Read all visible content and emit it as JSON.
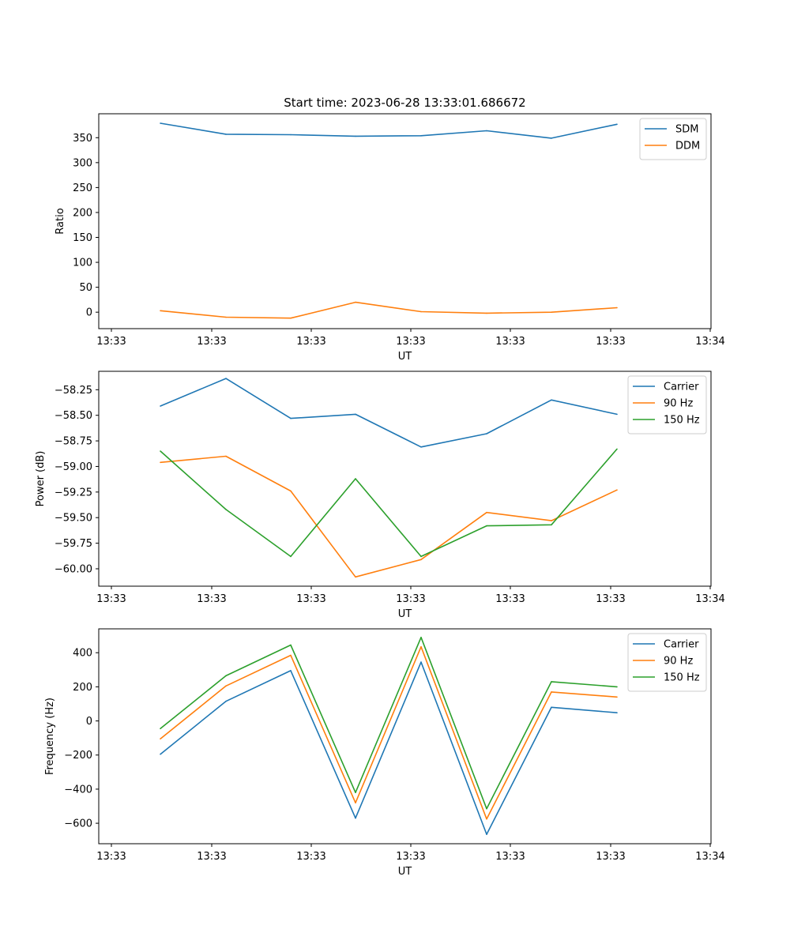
{
  "chart_data": [
    {
      "type": "line",
      "title": "Start time: 2023-06-28 13:33:01.686672",
      "xlabel": "UT",
      "ylabel": "Ratio",
      "x_tick_labels": [
        "13:33",
        "13:33",
        "13:33",
        "13:33",
        "13:33",
        "13:33",
        "13:34"
      ],
      "y_ticks": [
        0,
        50,
        100,
        150,
        200,
        250,
        300,
        350
      ],
      "y_tick_labels": [
        "0",
        "50",
        "100",
        "150",
        "200",
        "250",
        "300",
        "350"
      ],
      "ylim": [
        -33,
        398
      ],
      "grid": false,
      "legend_position": "top-right",
      "series": [
        {
          "name": "SDM",
          "color": "#1f77b4",
          "values": [
            379,
            357,
            356,
            353,
            354,
            364,
            349,
            377
          ]
        },
        {
          "name": "DDM",
          "color": "#ff7f0e",
          "values": [
            3,
            -10,
            -12,
            20,
            1,
            -2,
            0,
            9
          ]
        }
      ]
    },
    {
      "type": "line",
      "title": "",
      "xlabel": "UT",
      "ylabel": "Power (dB)",
      "x_tick_labels": [
        "13:33",
        "13:33",
        "13:33",
        "13:33",
        "13:33",
        "13:33",
        "13:34"
      ],
      "y_ticks": [
        -60.0,
        -59.75,
        -59.5,
        -59.25,
        -59.0,
        -58.75,
        -58.5,
        -58.25
      ],
      "y_tick_labels": [
        "−60.00",
        "−59.75",
        "−59.50",
        "−59.25",
        "−59.00",
        "−58.75",
        "−58.50",
        "−58.25"
      ],
      "ylim": [
        -60.17,
        -58.07
      ],
      "grid": false,
      "legend_position": "top-right",
      "series": [
        {
          "name": "Carrier",
          "color": "#1f77b4",
          "values": [
            -58.41,
            -58.14,
            -58.53,
            -58.49,
            -58.81,
            -58.68,
            -58.35,
            -58.49
          ]
        },
        {
          "name": "90 Hz",
          "color": "#ff7f0e",
          "values": [
            -58.96,
            -58.9,
            -59.24,
            -60.08,
            -59.91,
            -59.45,
            -59.53,
            -59.23
          ]
        },
        {
          "name": "150 Hz",
          "color": "#2ca02c",
          "values": [
            -58.85,
            -59.42,
            -59.88,
            -59.12,
            -59.88,
            -59.58,
            -59.57,
            -58.83
          ]
        }
      ]
    },
    {
      "type": "line",
      "title": "",
      "xlabel": "UT",
      "ylabel": "Frequency (Hz)",
      "x_tick_labels": [
        "13:33",
        "13:33",
        "13:33",
        "13:33",
        "13:33",
        "13:33",
        "13:34"
      ],
      "y_ticks": [
        -600,
        -400,
        -200,
        0,
        200,
        400
      ],
      "y_tick_labels": [
        "−600",
        "−400",
        "−200",
        "0",
        "200",
        "400"
      ],
      "ylim": [
        -720,
        540
      ],
      "grid": false,
      "legend_position": "top-right",
      "series": [
        {
          "name": "Carrier",
          "color": "#1f77b4",
          "values": [
            -195,
            115,
            295,
            -570,
            345,
            -665,
            80,
            48
          ]
        },
        {
          "name": "90 Hz",
          "color": "#ff7f0e",
          "values": [
            -105,
            205,
            385,
            -480,
            435,
            -575,
            170,
            140
          ]
        },
        {
          "name": "150 Hz",
          "color": "#2ca02c",
          "values": [
            -45,
            265,
            445,
            -420,
            490,
            -515,
            230,
            200
          ]
        }
      ]
    }
  ]
}
